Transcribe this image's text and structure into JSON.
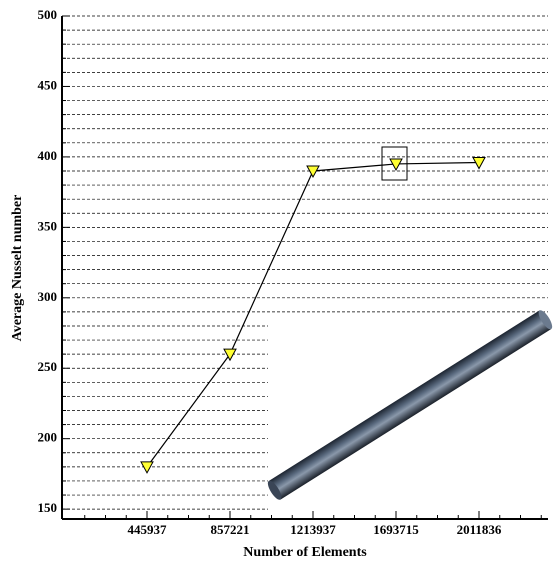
{
  "chart_data": {
    "type": "line",
    "x_label": "Number of Elements",
    "y_label": "Average Nusselt number",
    "categories": [
      "445937",
      "857221",
      "1213937",
      "1693715",
      "2011836"
    ],
    "series": [
      {
        "name": "Average Nusselt number",
        "color": "#000000",
        "marker_color": "#ffff33",
        "values": [
          180,
          260,
          390,
          395,
          396
        ]
      }
    ],
    "ylim": [
      143,
      500
    ],
    "yticks": [
      150,
      200,
      250,
      300,
      350,
      400,
      450,
      500
    ],
    "minor_yticks": [
      160,
      170,
      180,
      190,
      210,
      220,
      230,
      240,
      260,
      270,
      280,
      290,
      310,
      320,
      330,
      340,
      360,
      370,
      380,
      390,
      410,
      420,
      430,
      440,
      460,
      470,
      480,
      490
    ],
    "grid": true
  }
}
